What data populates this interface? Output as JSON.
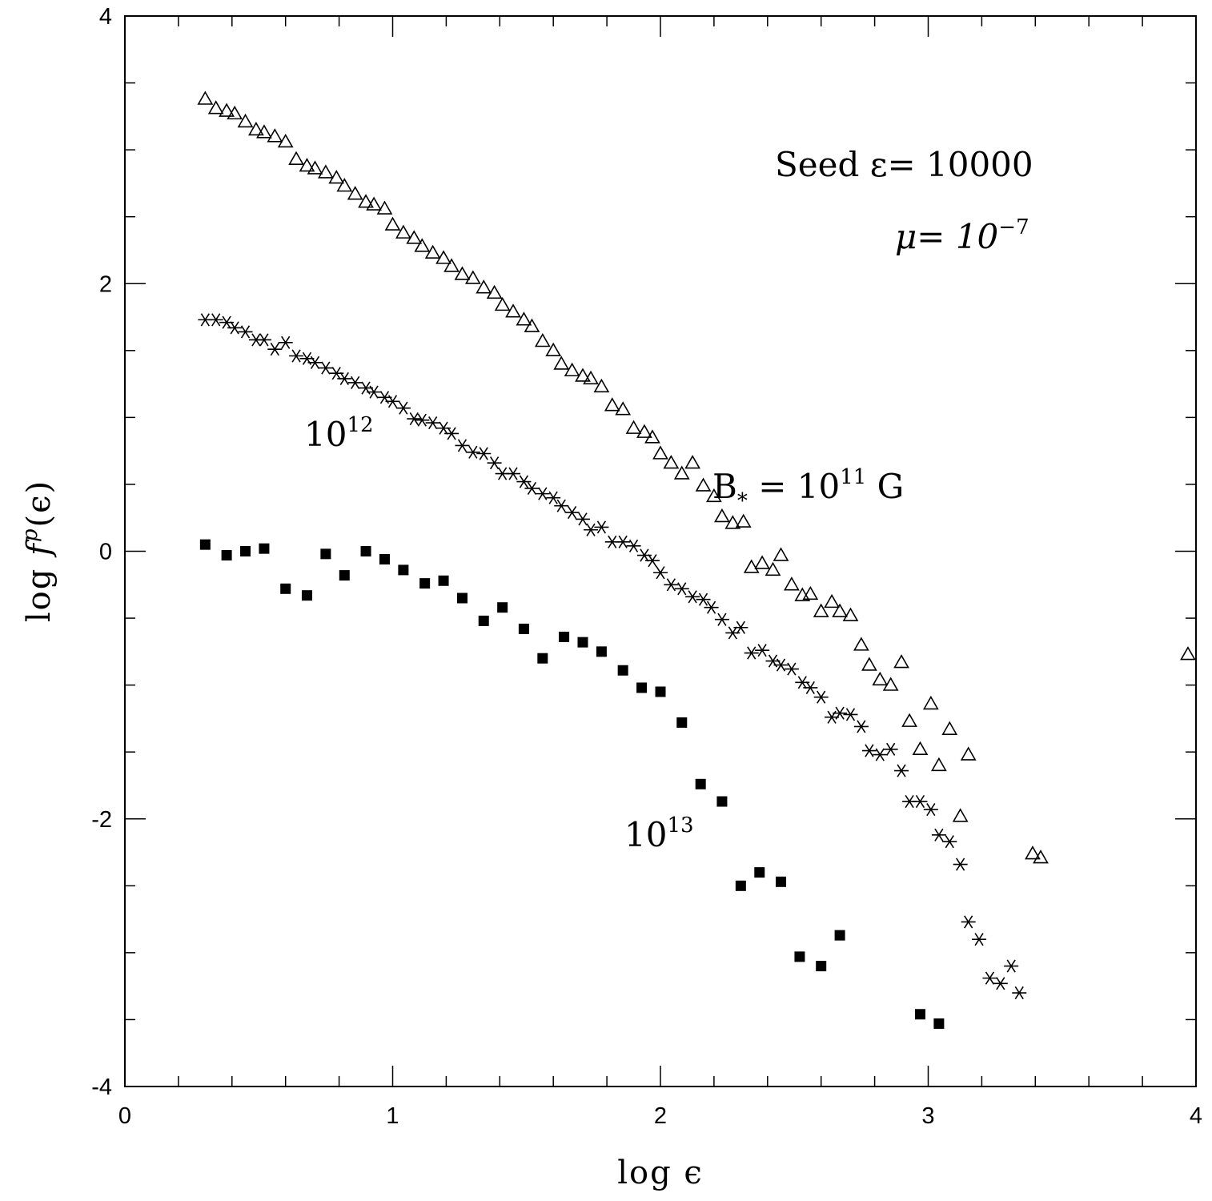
{
  "chart_data": {
    "type": "scatter",
    "title": "",
    "xlabel": "log ϵ",
    "ylabel_parts": {
      "pre": "log ",
      "f": "f",
      "sup": "p",
      "post": "(ϵ)"
    },
    "xlim": [
      0,
      4
    ],
    "ylim": [
      -4,
      4
    ],
    "x_ticks": [
      0,
      1,
      2,
      3,
      4
    ],
    "x_tick_labels": [
      "0",
      "1",
      "2",
      "3",
      "4"
    ],
    "y_ticks": [
      -4,
      -2,
      0,
      2,
      4
    ],
    "y_tick_labels": [
      "-4",
      "-2",
      "0",
      "2",
      "4"
    ],
    "minor_step": 0.2,
    "y_minor_step": 0.5,
    "annotations": {
      "seed": "Seed ε= 10000",
      "mu_pre": "μ= 10",
      "mu_sup": "−7",
      "b11_pre": "B",
      "b11_sub": "*",
      "b11_mid": " = 10",
      "b11_sup": "11",
      "b11_post": " G",
      "b12_pre": "10",
      "b12_sup": "12",
      "b13_pre": "10",
      "b13_sup": "13"
    },
    "series": [
      {
        "name": "B* = 10^11 G",
        "marker": "open-triangle",
        "points": [
          [
            0.3,
            3.38
          ],
          [
            0.34,
            3.31
          ],
          [
            0.38,
            3.29
          ],
          [
            0.41,
            3.27
          ],
          [
            0.45,
            3.21
          ],
          [
            0.49,
            3.15
          ],
          [
            0.52,
            3.13
          ],
          [
            0.56,
            3.1
          ],
          [
            0.6,
            3.06
          ],
          [
            0.64,
            2.93
          ],
          [
            0.68,
            2.88
          ],
          [
            0.71,
            2.86
          ],
          [
            0.75,
            2.83
          ],
          [
            0.79,
            2.79
          ],
          [
            0.82,
            2.73
          ],
          [
            0.86,
            2.67
          ],
          [
            0.9,
            2.61
          ],
          [
            0.93,
            2.59
          ],
          [
            0.97,
            2.56
          ],
          [
            1.0,
            2.44
          ],
          [
            1.04,
            2.38
          ],
          [
            1.08,
            2.34
          ],
          [
            1.11,
            2.28
          ],
          [
            1.15,
            2.23
          ],
          [
            1.19,
            2.19
          ],
          [
            1.22,
            2.13
          ],
          [
            1.26,
            2.07
          ],
          [
            1.3,
            2.04
          ],
          [
            1.34,
            1.97
          ],
          [
            1.38,
            1.93
          ],
          [
            1.41,
            1.84
          ],
          [
            1.45,
            1.79
          ],
          [
            1.49,
            1.73
          ],
          [
            1.52,
            1.68
          ],
          [
            1.56,
            1.57
          ],
          [
            1.6,
            1.5
          ],
          [
            1.63,
            1.4
          ],
          [
            1.67,
            1.35
          ],
          [
            1.71,
            1.31
          ],
          [
            1.74,
            1.29
          ],
          [
            1.78,
            1.23
          ],
          [
            1.82,
            1.09
          ],
          [
            1.86,
            1.06
          ],
          [
            1.9,
            0.92
          ],
          [
            1.94,
            0.89
          ],
          [
            1.97,
            0.85
          ],
          [
            2.0,
            0.73
          ],
          [
            2.04,
            0.66
          ],
          [
            2.08,
            0.58
          ],
          [
            2.12,
            0.66
          ],
          [
            2.16,
            0.49
          ],
          [
            2.2,
            0.41
          ],
          [
            2.23,
            0.26
          ],
          [
            2.27,
            0.21
          ],
          [
            2.31,
            0.22
          ],
          [
            2.34,
            -0.12
          ],
          [
            2.38,
            -0.09
          ],
          [
            2.42,
            -0.14
          ],
          [
            2.45,
            -0.03
          ],
          [
            2.49,
            -0.25
          ],
          [
            2.53,
            -0.33
          ],
          [
            2.56,
            -0.32
          ],
          [
            2.6,
            -0.45
          ],
          [
            2.64,
            -0.38
          ],
          [
            2.67,
            -0.45
          ],
          [
            2.71,
            -0.48
          ],
          [
            2.75,
            -0.7
          ],
          [
            2.78,
            -0.85
          ],
          [
            2.82,
            -0.96
          ],
          [
            2.86,
            -1.0
          ],
          [
            2.9,
            -0.83
          ],
          [
            2.93,
            -1.27
          ],
          [
            2.97,
            -1.48
          ],
          [
            3.01,
            -1.14
          ],
          [
            3.04,
            -1.6
          ],
          [
            3.08,
            -1.33
          ],
          [
            3.12,
            -1.98
          ],
          [
            3.15,
            -1.52
          ],
          [
            3.39,
            -2.26
          ],
          [
            3.42,
            -2.29
          ],
          [
            3.97,
            -0.77
          ]
        ]
      },
      {
        "name": "10^12",
        "marker": "asterisk",
        "points": [
          [
            0.3,
            1.73
          ],
          [
            0.34,
            1.73
          ],
          [
            0.38,
            1.71
          ],
          [
            0.41,
            1.67
          ],
          [
            0.45,
            1.64
          ],
          [
            0.49,
            1.58
          ],
          [
            0.52,
            1.58
          ],
          [
            0.56,
            1.51
          ],
          [
            0.6,
            1.56
          ],
          [
            0.64,
            1.46
          ],
          [
            0.68,
            1.44
          ],
          [
            0.71,
            1.41
          ],
          [
            0.75,
            1.37
          ],
          [
            0.79,
            1.33
          ],
          [
            0.82,
            1.29
          ],
          [
            0.86,
            1.26
          ],
          [
            0.9,
            1.22
          ],
          [
            0.93,
            1.19
          ],
          [
            0.97,
            1.15
          ],
          [
            1.0,
            1.12
          ],
          [
            1.04,
            1.07
          ],
          [
            1.08,
            0.99
          ],
          [
            1.11,
            0.98
          ],
          [
            1.15,
            0.96
          ],
          [
            1.19,
            0.92
          ],
          [
            1.22,
            0.88
          ],
          [
            1.26,
            0.79
          ],
          [
            1.3,
            0.74
          ],
          [
            1.34,
            0.73
          ],
          [
            1.38,
            0.66
          ],
          [
            1.41,
            0.58
          ],
          [
            1.45,
            0.58
          ],
          [
            1.49,
            0.52
          ],
          [
            1.52,
            0.47
          ],
          [
            1.56,
            0.43
          ],
          [
            1.6,
            0.4
          ],
          [
            1.63,
            0.34
          ],
          [
            1.67,
            0.29
          ],
          [
            1.71,
            0.24
          ],
          [
            1.74,
            0.16
          ],
          [
            1.78,
            0.18
          ],
          [
            1.82,
            0.07
          ],
          [
            1.86,
            0.07
          ],
          [
            1.9,
            0.04
          ],
          [
            1.94,
            -0.03
          ],
          [
            1.97,
            -0.07
          ],
          [
            2.0,
            -0.16
          ],
          [
            2.04,
            -0.25
          ],
          [
            2.08,
            -0.28
          ],
          [
            2.12,
            -0.34
          ],
          [
            2.16,
            -0.36
          ],
          [
            2.19,
            -0.42
          ],
          [
            2.23,
            -0.51
          ],
          [
            2.27,
            -0.61
          ],
          [
            2.3,
            -0.57
          ],
          [
            2.34,
            -0.76
          ],
          [
            2.38,
            -0.74
          ],
          [
            2.42,
            -0.82
          ],
          [
            2.45,
            -0.85
          ],
          [
            2.49,
            -0.88
          ],
          [
            2.53,
            -0.98
          ],
          [
            2.56,
            -1.02
          ],
          [
            2.6,
            -1.09
          ],
          [
            2.64,
            -1.24
          ],
          [
            2.67,
            -1.21
          ],
          [
            2.71,
            -1.22
          ],
          [
            2.75,
            -1.31
          ],
          [
            2.78,
            -1.49
          ],
          [
            2.82,
            -1.52
          ],
          [
            2.86,
            -1.48
          ],
          [
            2.9,
            -1.64
          ],
          [
            2.93,
            -1.87
          ],
          [
            2.97,
            -1.87
          ],
          [
            3.01,
            -1.93
          ],
          [
            3.04,
            -2.12
          ],
          [
            3.08,
            -2.17
          ],
          [
            3.12,
            -2.34
          ],
          [
            3.15,
            -2.77
          ],
          [
            3.19,
            -2.9
          ],
          [
            3.23,
            -3.19
          ],
          [
            3.27,
            -3.23
          ],
          [
            3.31,
            -3.1
          ],
          [
            3.34,
            -3.3
          ]
        ]
      },
      {
        "name": "10^13",
        "marker": "filled-square",
        "points": [
          [
            0.3,
            0.05
          ],
          [
            0.38,
            -0.03
          ],
          [
            0.45,
            0.0
          ],
          [
            0.52,
            0.02
          ],
          [
            0.6,
            -0.28
          ],
          [
            0.68,
            -0.33
          ],
          [
            0.75,
            -0.02
          ],
          [
            0.82,
            -0.18
          ],
          [
            0.9,
            0.0
          ],
          [
            0.97,
            -0.06
          ],
          [
            1.04,
            -0.14
          ],
          [
            1.12,
            -0.24
          ],
          [
            1.19,
            -0.22
          ],
          [
            1.26,
            -0.35
          ],
          [
            1.34,
            -0.52
          ],
          [
            1.41,
            -0.42
          ],
          [
            1.49,
            -0.58
          ],
          [
            1.56,
            -0.8
          ],
          [
            1.64,
            -0.64
          ],
          [
            1.71,
            -0.68
          ],
          [
            1.78,
            -0.75
          ],
          [
            1.86,
            -0.89
          ],
          [
            1.93,
            -1.02
          ],
          [
            2.0,
            -1.05
          ],
          [
            2.08,
            -1.28
          ],
          [
            2.15,
            -1.74
          ],
          [
            2.23,
            -1.87
          ],
          [
            2.3,
            -2.5
          ],
          [
            2.37,
            -2.4
          ],
          [
            2.45,
            -2.47
          ],
          [
            2.52,
            -3.03
          ],
          [
            2.6,
            -3.1
          ],
          [
            2.67,
            -2.87
          ],
          [
            2.97,
            -3.46
          ],
          [
            3.04,
            -3.53
          ]
        ]
      }
    ]
  }
}
